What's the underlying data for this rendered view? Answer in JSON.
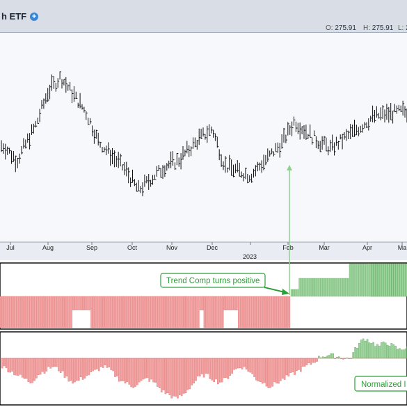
{
  "header": {
    "title": "h ETF",
    "ohlc": [
      {
        "label": "O:",
        "value": "275.91"
      },
      {
        "label": "H:",
        "value": "275.91"
      },
      {
        "label": "L:",
        "value": "2"
      }
    ]
  },
  "colors": {
    "bar": "#111111",
    "positive": "#9ed39e",
    "positive_stroke": "#5fae5f",
    "negative": "#f2a3a3",
    "negative_stroke": "#e06e6e",
    "annotation": "#2e9e3a",
    "arrow": "#8fd08f"
  },
  "chart_data": [
    {
      "type": "ohlc",
      "x_axis": {
        "ticks": [
          "Jul",
          "Aug",
          "Sep",
          "Oct",
          "Nov",
          "Dec",
          "Feb",
          "Mar",
          "Apr",
          "Ma"
        ],
        "year_label": "2023"
      },
      "close_path": [
        [
          "Jul",
          244
        ],
        [
          "Jul",
          238
        ],
        [
          "Aug",
          252
        ],
        [
          "Aug",
          266
        ],
        [
          "Aug",
          272
        ],
        [
          "Sep",
          258
        ],
        [
          "Sep",
          246
        ],
        [
          "Oct",
          234
        ],
        [
          "Oct",
          226
        ],
        [
          "Nov",
          236
        ],
        [
          "Nov",
          238
        ],
        [
          "Dec",
          247
        ],
        [
          "Dec",
          251
        ],
        [
          "Dec",
          236
        ],
        [
          "2023",
          232
        ],
        [
          "Feb",
          245
        ],
        [
          "Feb",
          254
        ],
        [
          "Mar",
          246
        ],
        [
          "Mar",
          243
        ],
        [
          "Apr",
          252
        ],
        [
          "Apr",
          256
        ],
        [
          "Ma",
          258
        ]
      ]
    },
    {
      "type": "bar",
      "name": "Trend Comp",
      "annotation": "Trend Comp turns positive",
      "segments": [
        {
          "state": "negative",
          "level": -1,
          "from": "Jul",
          "to": "Feb"
        },
        {
          "state": "positive",
          "level": 1,
          "from": "Feb",
          "to": "Apr"
        },
        {
          "state": "positive",
          "level": 2,
          "from": "Apr",
          "to": "Ma"
        }
      ]
    },
    {
      "type": "bar",
      "annotation": "Normalized I",
      "values": [
        -0.2,
        -0.3,
        -0.4,
        -0.5,
        -0.6,
        -0.4,
        -0.3,
        -0.2,
        -0.3,
        -0.5,
        -0.6,
        -0.5,
        -0.4,
        -0.3,
        -0.2,
        -0.3,
        -0.5,
        -0.6,
        -0.7,
        -0.6,
        -0.5,
        -0.6,
        -0.8,
        -0.9,
        -1.0,
        -0.9,
        -0.7,
        -0.5,
        -0.4,
        -0.5,
        -0.6,
        -0.5,
        -0.3,
        -0.2,
        -0.3,
        -0.5,
        -0.6,
        -0.7,
        -0.6,
        -0.5,
        -0.4,
        -0.3,
        -0.2,
        -0.1,
        0.05,
        0.08,
        0.05,
        0.02,
        -0.02,
        0.3,
        0.5,
        0.4,
        0.3,
        0.4,
        0.3,
        0.2,
        0.3
      ]
    }
  ]
}
